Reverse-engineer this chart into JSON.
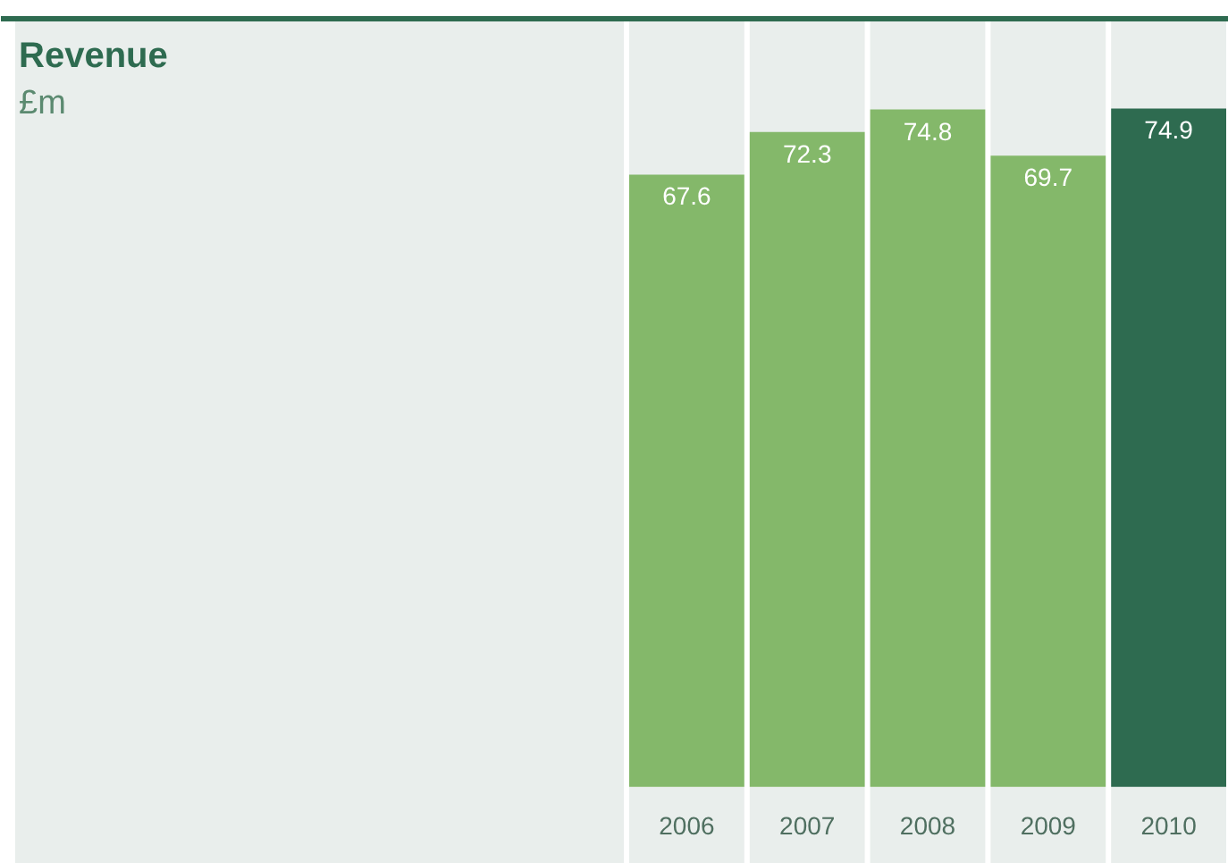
{
  "chart_data": {
    "type": "bar",
    "title": "Revenue",
    "subtitle": "£m",
    "categories": [
      "2006",
      "2007",
      "2008",
      "2009",
      "2010"
    ],
    "values": [
      67.6,
      72.3,
      74.8,
      69.7,
      74.9
    ],
    "colors": [
      "#84b86a",
      "#84b86a",
      "#84b86a",
      "#84b86a",
      "#2e6b50"
    ],
    "data_labels": true
  }
}
